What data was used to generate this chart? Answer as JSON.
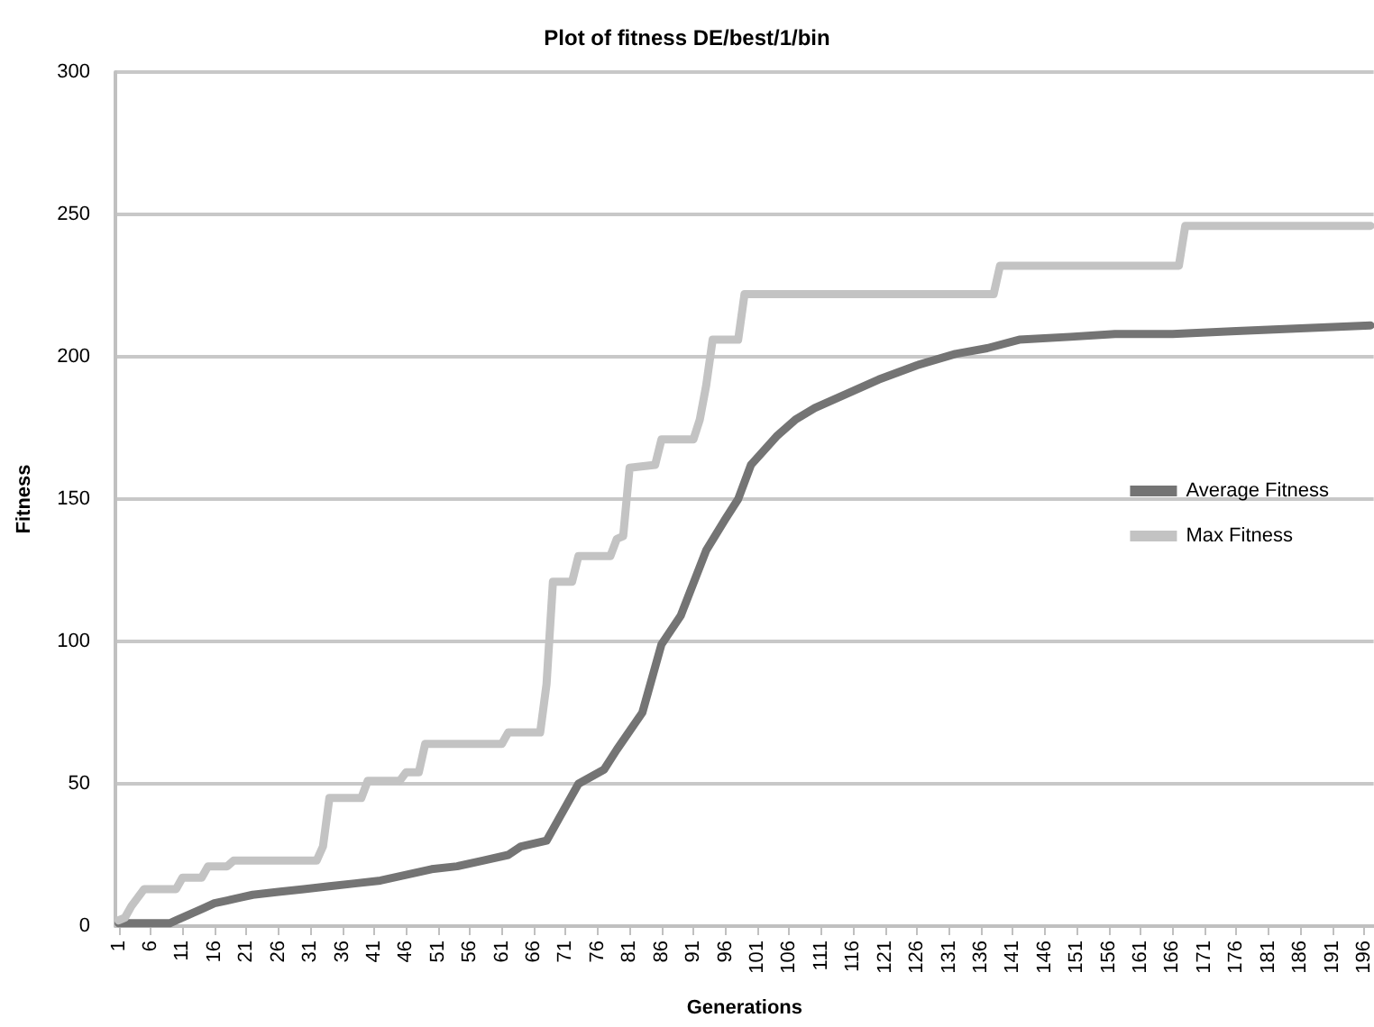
{
  "chart_data": {
    "type": "line",
    "title": "Plot of fitness DE/best/1/bin",
    "xlabel": "Generations",
    "ylabel": "Fitness",
    "xlim": [
      0.5,
      197.5
    ],
    "xticks": [
      1,
      6,
      11,
      16,
      21,
      26,
      31,
      36,
      41,
      46,
      51,
      56,
      61,
      66,
      71,
      76,
      81,
      86,
      91,
      96,
      101,
      106,
      111,
      116,
      121,
      126,
      131,
      136,
      141,
      146,
      151,
      156,
      161,
      166,
      171,
      176,
      181,
      186,
      191,
      196
    ],
    "ylim": [
      0,
      300
    ],
    "yticks": [
      0,
      50,
      100,
      150,
      200,
      250,
      300
    ],
    "grid": "y",
    "legend": "right",
    "marker": "none",
    "line_style": "solid",
    "series": [
      {
        "name": "Average Fitness",
        "color": "#747474",
        "x": [
          1,
          9,
          10,
          12,
          14,
          16,
          18,
          20,
          22,
          26,
          30,
          34,
          38,
          42,
          46,
          50,
          54,
          58,
          62,
          64,
          66,
          68,
          70,
          73,
          77,
          79,
          83,
          86,
          89,
          93,
          96,
          98,
          100,
          104,
          107,
          110,
          115,
          120,
          126,
          132,
          137,
          142,
          150,
          157,
          166,
          176,
          186,
          197
        ],
        "values": [
          1,
          1,
          2,
          4,
          6,
          8,
          9,
          10,
          11,
          12,
          13,
          14,
          15,
          16,
          18,
          20,
          21,
          23,
          25,
          28,
          29,
          30,
          38,
          50,
          55,
          62,
          75,
          99,
          109,
          132,
          143,
          150,
          162,
          172,
          178,
          182,
          187,
          192,
          197,
          201,
          203,
          206,
          207,
          208,
          208,
          209,
          210,
          211
        ]
      },
      {
        "name": "Max Fitness",
        "color": "#c3c3c3",
        "x": [
          1,
          2,
          3,
          4,
          5,
          10,
          11,
          14,
          15,
          18,
          19,
          32,
          33,
          34,
          39,
          40,
          45,
          46,
          48,
          49,
          61,
          62,
          67,
          68,
          69,
          72,
          73,
          78,
          79,
          80,
          81,
          85,
          86,
          91,
          92,
          93,
          94,
          98,
          99,
          138,
          139,
          167,
          168,
          197
        ],
        "values": [
          2,
          3,
          7,
          10,
          13,
          13,
          17,
          17,
          21,
          21,
          23,
          23,
          28,
          45,
          45,
          51,
          51,
          54,
          54,
          64,
          64,
          68,
          68,
          85,
          121,
          121,
          130,
          130,
          136,
          137,
          161,
          162,
          171,
          171,
          178,
          190,
          206,
          206,
          222,
          222,
          232,
          232,
          246,
          246
        ]
      }
    ]
  }
}
